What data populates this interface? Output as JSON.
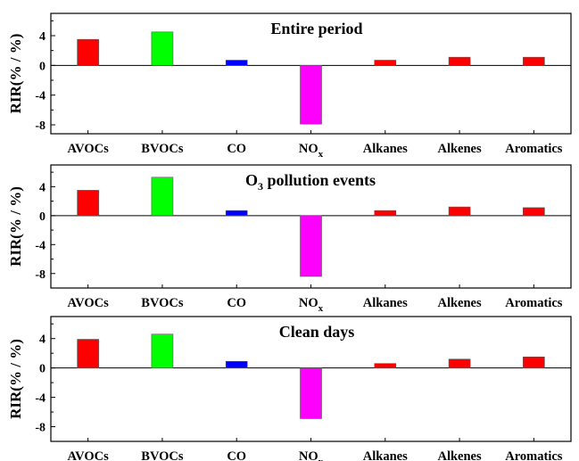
{
  "ylabel": "RIR(% / %)",
  "chart_data": [
    {
      "type": "bar",
      "title": "Entire period",
      "ylabel": "RIR(% / %)",
      "ylim": [
        -9.2,
        7
      ],
      "yticks": [
        "4",
        "0",
        "-4",
        "-8"
      ],
      "categories": [
        "AVOCs",
        "BVOCs",
        "CO",
        "NOx",
        "Alkanes",
        "Alkenes",
        "Aromatics"
      ],
      "category_labels": [
        {
          "main": "AVOCs"
        },
        {
          "main": "BVOCs"
        },
        {
          "main": "CO"
        },
        {
          "main": "NO",
          "sub": "x"
        },
        {
          "main": "Alkanes"
        },
        {
          "main": "Alkenes"
        },
        {
          "main": "Aromatics"
        }
      ],
      "values": [
        3.5,
        4.5,
        0.7,
        -7.9,
        0.7,
        1.1,
        1.1
      ],
      "colors": [
        "#ff0000",
        "#00ff00",
        "#0000ff",
        "#ff00ff",
        "#ff0000",
        "#ff0000",
        "#ff0000"
      ]
    },
    {
      "type": "bar",
      "title": "O3 pollution events",
      "title_parts": {
        "main": "O",
        "sub": "3",
        "rest": " pollution events"
      },
      "ylabel": "RIR(% / %)",
      "ylim": [
        -10,
        7
      ],
      "yticks": [
        "4",
        "0",
        "-4",
        "-8"
      ],
      "categories": [
        "AVOCs",
        "BVOCs",
        "CO",
        "NOx",
        "Alkanes",
        "Alkenes",
        "Aromatics"
      ],
      "category_labels": [
        {
          "main": "AVOCs"
        },
        {
          "main": "BVOCs"
        },
        {
          "main": "CO"
        },
        {
          "main": "NO",
          "sub": "x"
        },
        {
          "main": "Alkanes"
        },
        {
          "main": "Alkenes"
        },
        {
          "main": "Aromatics"
        }
      ],
      "values": [
        3.5,
        5.3,
        0.7,
        -8.4,
        0.7,
        1.2,
        1.1
      ],
      "colors": [
        "#ff0000",
        "#00ff00",
        "#0000ff",
        "#ff00ff",
        "#ff0000",
        "#ff0000",
        "#ff0000"
      ]
    },
    {
      "type": "bar",
      "title": "Clean days",
      "ylabel": "RIR(% / %)",
      "ylim": [
        -10,
        7
      ],
      "yticks": [
        "4",
        "0",
        "-4",
        "-8"
      ],
      "categories": [
        "AVOCs",
        "BVOCs",
        "CO",
        "NOx",
        "Alkanes",
        "Alkenes",
        "Aromatics"
      ],
      "category_labels": [
        {
          "main": "AVOCs"
        },
        {
          "main": "BVOCs"
        },
        {
          "main": "CO"
        },
        {
          "main": "NO",
          "sub": "x"
        },
        {
          "main": "Alkanes"
        },
        {
          "main": "Alkenes"
        },
        {
          "main": "Aromatics"
        }
      ],
      "values": [
        3.9,
        4.6,
        0.9,
        -6.9,
        0.6,
        1.2,
        1.5
      ],
      "colors": [
        "#ff0000",
        "#00ff00",
        "#0000ff",
        "#ff00ff",
        "#ff0000",
        "#ff0000",
        "#ff0000"
      ]
    }
  ]
}
